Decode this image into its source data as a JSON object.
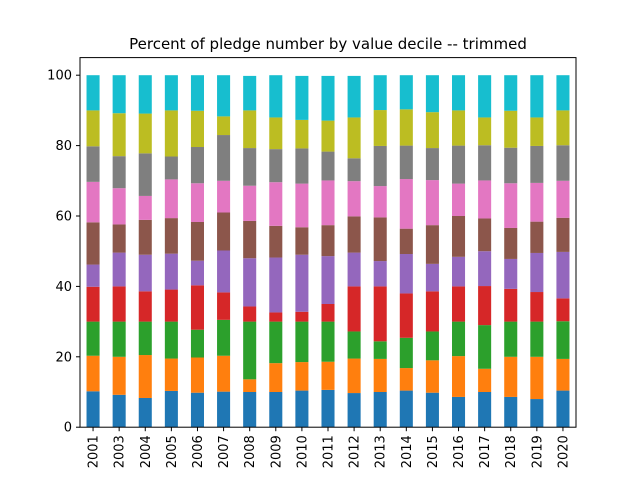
{
  "chart_data": {
    "type": "bar",
    "stacked": true,
    "title": "Percent of pledge number by value decile -- trimmed",
    "xlabel": "",
    "ylabel": "",
    "ylim": [
      0,
      105
    ],
    "yticks": [
      0,
      20,
      40,
      60,
      80,
      100
    ],
    "grid": false,
    "legend": "none",
    "categories": [
      "2001",
      "2003",
      "2004",
      "2005",
      "2006",
      "2007",
      "2008",
      "2009",
      "2010",
      "2011",
      "2012",
      "2013",
      "2014",
      "2015",
      "2016",
      "2017",
      "2018",
      "2019",
      "2020"
    ],
    "series": [
      {
        "color": "#1f77b4",
        "values": [
          10.2,
          9.2,
          8.3,
          10.3,
          9.8,
          10.1,
          10.0,
          10.0,
          10.4,
          10.6,
          9.7,
          10.0,
          10.4,
          9.8,
          8.6,
          10.0,
          8.6,
          8.0,
          10.4
        ]
      },
      {
        "color": "#ff7f0e",
        "values": [
          10.1,
          10.8,
          12.2,
          9.2,
          10.0,
          10.2,
          3.6,
          8.2,
          8.1,
          8.0,
          9.8,
          9.4,
          6.4,
          9.2,
          11.6,
          6.6,
          11.4,
          12.0,
          9.0
        ]
      },
      {
        "color": "#2ca02c",
        "values": [
          9.7,
          10.0,
          9.5,
          10.5,
          7.9,
          10.2,
          16.4,
          11.8,
          11.5,
          11.4,
          7.7,
          5.0,
          8.6,
          8.2,
          9.8,
          12.4,
          10.0,
          10.0,
          10.7
        ]
      },
      {
        "color": "#d62728",
        "values": [
          9.9,
          10.0,
          8.6,
          9.1,
          12.6,
          7.8,
          4.3,
          2.6,
          2.8,
          5.0,
          12.8,
          15.6,
          12.6,
          11.4,
          10.0,
          11.1,
          9.3,
          8.4,
          6.5
        ]
      },
      {
        "color": "#9467bd",
        "values": [
          6.3,
          9.6,
          10.4,
          10.2,
          7.0,
          11.9,
          13.7,
          15.6,
          16.2,
          13.6,
          9.6,
          7.2,
          11.2,
          7.8,
          8.4,
          9.9,
          8.5,
          11.1,
          13.2
        ]
      },
      {
        "color": "#8c564b",
        "values": [
          12.0,
          8.0,
          9.9,
          10.1,
          11.0,
          10.8,
          10.6,
          9.0,
          7.8,
          8.8,
          10.3,
          12.4,
          7.2,
          11.0,
          11.6,
          9.3,
          8.8,
          8.9,
          9.7
        ]
      },
      {
        "color": "#e377c2",
        "values": [
          11.5,
          10.3,
          6.8,
          11.0,
          11.0,
          9.0,
          10.0,
          12.4,
          12.4,
          12.7,
          10.0,
          8.9,
          14.1,
          12.8,
          9.2,
          10.8,
          12.7,
          11.0,
          10.5
        ]
      },
      {
        "color": "#7f7f7f",
        "values": [
          10.1,
          9.1,
          12.1,
          6.5,
          10.3,
          13.0,
          10.7,
          9.4,
          10.0,
          8.2,
          6.5,
          11.4,
          9.5,
          9.1,
          10.8,
          10.0,
          10.1,
          10.5,
          10.1
        ]
      },
      {
        "color": "#bcbd22",
        "values": [
          10.2,
          12.2,
          11.3,
          13.1,
          10.3,
          5.3,
          10.7,
          9.0,
          8.1,
          8.8,
          11.6,
          10.2,
          10.3,
          10.2,
          10.0,
          7.9,
          10.5,
          8.1,
          9.9
        ]
      },
      {
        "color": "#17becf",
        "values": [
          10.0,
          10.8,
          10.9,
          10.0,
          10.1,
          11.7,
          9.8,
          12.0,
          12.5,
          12.7,
          11.8,
          9.9,
          9.7,
          10.5,
          10.0,
          12.0,
          10.1,
          12.0,
          10.0
        ]
      }
    ]
  }
}
